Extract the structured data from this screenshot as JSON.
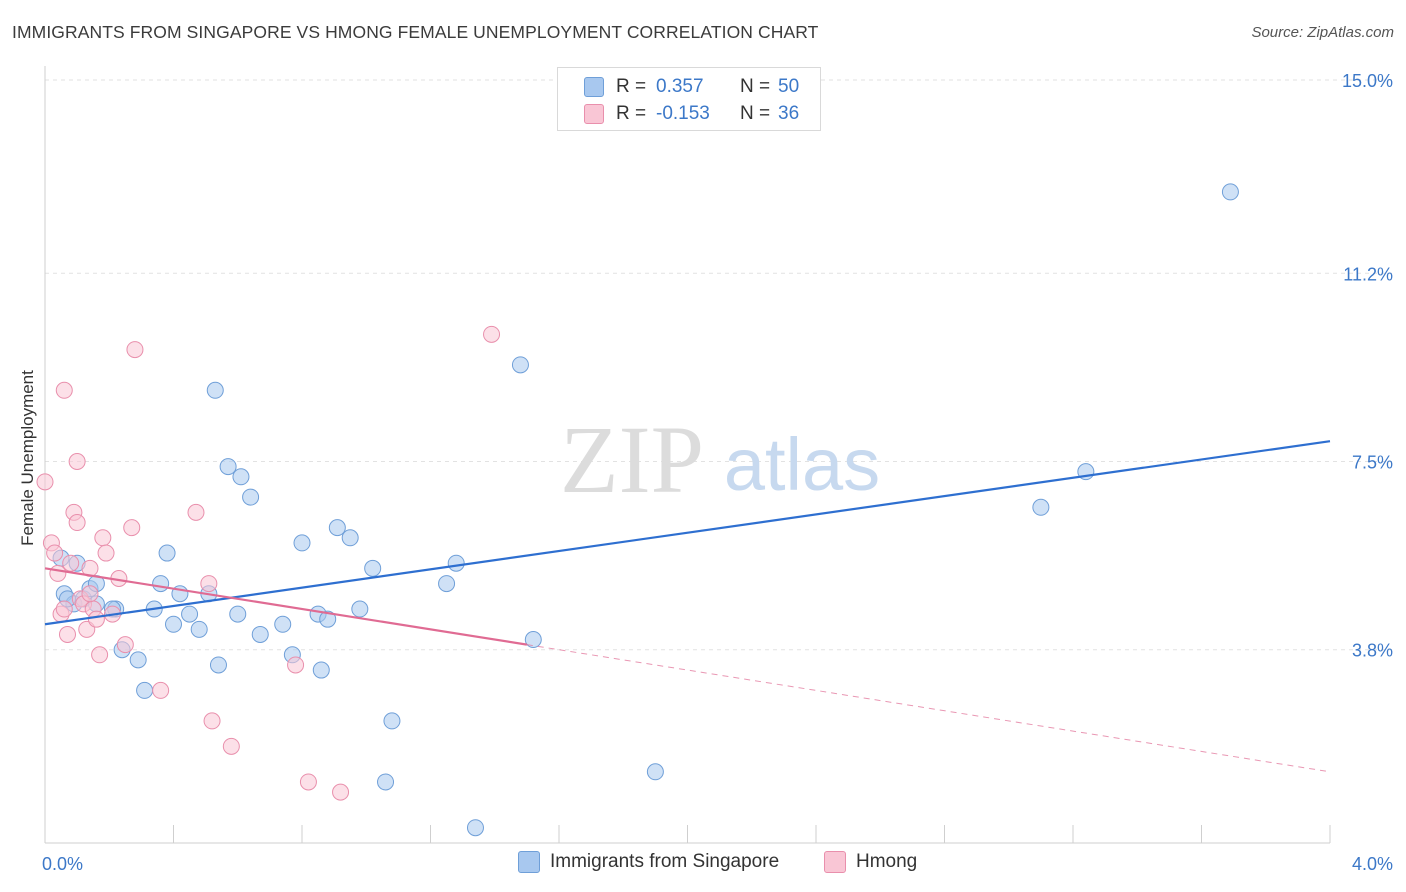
{
  "title": "IMMIGRANTS FROM SINGAPORE VS HMONG FEMALE UNEMPLOYMENT CORRELATION CHART",
  "source": "Source: ZipAtlas.com",
  "watermark": {
    "zip": "ZIP",
    "atlas": "atlas"
  },
  "legend": {
    "r_label": "R =",
    "n_label": "N =",
    "rows": [
      {
        "r": "0.357",
        "n": "50",
        "color": "#a8c8ef",
        "border": "#6f9fd8"
      },
      {
        "r": "-0.153",
        "n": "36",
        "color": "#f9c6d5",
        "border": "#e98fac"
      }
    ]
  },
  "chart_data": {
    "type": "scatter",
    "title": "IMMIGRANTS FROM SINGAPORE VS HMONG FEMALE UNEMPLOYMENT CORRELATION CHART",
    "xlabel": "",
    "ylabel": "Female Unemployment",
    "xlim": [
      0,
      4.0
    ],
    "ylim": [
      0,
      15.0
    ],
    "x_tick_labels": [
      "0.0%",
      "4.0%"
    ],
    "y_ticks": [
      3.8,
      7.5,
      11.2,
      15.0
    ],
    "y_tick_labels": [
      "3.8%",
      "7.5%",
      "11.2%",
      "15.0%"
    ],
    "grid": true,
    "legend_position": "top-center",
    "series": [
      {
        "name": "Immigrants from Singapore",
        "color": "#a8c8ef",
        "edge": "#6f9fd8",
        "line_color": "#2e6fd0",
        "trend": {
          "x": [
            0.0,
            4.0
          ],
          "y": [
            4.3,
            7.9
          ]
        },
        "points": [
          [
            0.05,
            5.6
          ],
          [
            0.06,
            4.9
          ],
          [
            0.09,
            4.7
          ],
          [
            0.12,
            4.8
          ],
          [
            0.14,
            5.0
          ],
          [
            0.16,
            5.1
          ],
          [
            0.22,
            4.6
          ],
          [
            0.24,
            3.8
          ],
          [
            0.29,
            3.6
          ],
          [
            0.31,
            3.0
          ],
          [
            0.34,
            4.6
          ],
          [
            0.36,
            5.1
          ],
          [
            0.38,
            5.7
          ],
          [
            0.4,
            4.3
          ],
          [
            0.42,
            4.9
          ],
          [
            0.45,
            4.5
          ],
          [
            0.48,
            4.2
          ],
          [
            0.51,
            4.9
          ],
          [
            0.53,
            8.9
          ],
          [
            0.54,
            3.5
          ],
          [
            0.57,
            7.4
          ],
          [
            0.6,
            4.5
          ],
          [
            0.61,
            7.2
          ],
          [
            0.64,
            6.8
          ],
          [
            0.67,
            4.1
          ],
          [
            0.74,
            4.3
          ],
          [
            0.77,
            3.7
          ],
          [
            0.8,
            5.9
          ],
          [
            0.85,
            4.5
          ],
          [
            0.86,
            3.4
          ],
          [
            0.88,
            4.4
          ],
          [
            0.91,
            6.2
          ],
          [
            0.95,
            6.0
          ],
          [
            0.98,
            4.6
          ],
          [
            1.02,
            5.4
          ],
          [
            1.06,
            1.2
          ],
          [
            1.08,
            2.4
          ],
          [
            1.25,
            5.1
          ],
          [
            1.28,
            5.5
          ],
          [
            1.34,
            0.3
          ],
          [
            1.48,
            9.4
          ],
          [
            1.52,
            4.0
          ],
          [
            1.9,
            1.4
          ],
          [
            3.1,
            6.6
          ],
          [
            3.24,
            7.3
          ],
          [
            3.69,
            12.8
          ],
          [
            0.1,
            5.5
          ],
          [
            0.16,
            4.7
          ],
          [
            0.07,
            4.8
          ],
          [
            0.21,
            4.6
          ]
        ]
      },
      {
        "name": "Hmong",
        "color": "#f9c6d5",
        "edge": "#e98fac",
        "line_color": "#e06b93",
        "trend": {
          "x": [
            0.0,
            1.5
          ],
          "y": [
            5.4,
            3.9
          ]
        },
        "trend_ext": {
          "x": [
            1.5,
            4.0
          ],
          "y": [
            3.9,
            1.4
          ]
        },
        "points": [
          [
            0.0,
            7.1
          ],
          [
            0.02,
            5.9
          ],
          [
            0.03,
            5.7
          ],
          [
            0.04,
            5.3
          ],
          [
            0.05,
            4.5
          ],
          [
            0.06,
            4.6
          ],
          [
            0.06,
            8.9
          ],
          [
            0.07,
            4.1
          ],
          [
            0.08,
            5.5
          ],
          [
            0.09,
            6.5
          ],
          [
            0.1,
            6.3
          ],
          [
            0.1,
            7.5
          ],
          [
            0.11,
            4.8
          ],
          [
            0.12,
            4.7
          ],
          [
            0.13,
            4.2
          ],
          [
            0.14,
            5.4
          ],
          [
            0.15,
            4.6
          ],
          [
            0.16,
            4.4
          ],
          [
            0.17,
            3.7
          ],
          [
            0.18,
            6.0
          ],
          [
            0.19,
            5.7
          ],
          [
            0.21,
            4.5
          ],
          [
            0.23,
            5.2
          ],
          [
            0.25,
            3.9
          ],
          [
            0.27,
            6.2
          ],
          [
            0.28,
            9.7
          ],
          [
            0.36,
            3.0
          ],
          [
            0.47,
            6.5
          ],
          [
            0.51,
            5.1
          ],
          [
            0.52,
            2.4
          ],
          [
            0.58,
            1.9
          ],
          [
            0.78,
            3.5
          ],
          [
            0.82,
            1.2
          ],
          [
            0.92,
            1.0
          ],
          [
            1.39,
            10.0
          ],
          [
            0.14,
            4.9
          ]
        ]
      }
    ]
  }
}
